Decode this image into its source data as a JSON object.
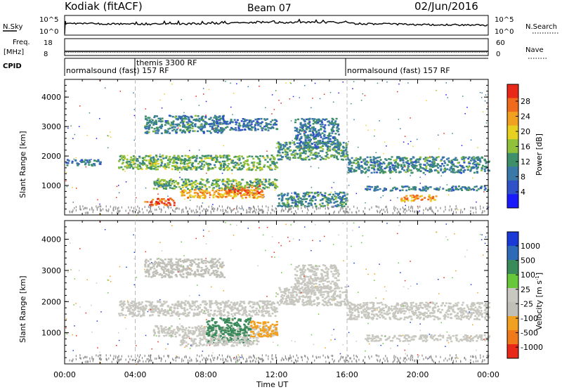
{
  "header": {
    "station": "Kodiak (fitACF)",
    "beam": "Beam 07",
    "date": "02/Jun/2016"
  },
  "strips": {
    "nsky_label": "N.Sky",
    "nsky_ticks": [
      "10^5",
      "10^0"
    ],
    "nsearch_label": "N.Search",
    "nsearch_ticks": [
      "10^5",
      "10^0"
    ],
    "freq_label_1": "Freq.",
    "freq_label_2": "[MHz]",
    "freq_ticks": [
      "18",
      "8"
    ],
    "nave_label": "Nave",
    "nave_ticks": [
      "60",
      "0"
    ],
    "cpid_label": "CPID",
    "cpid_entries": [
      {
        "text": "normalsound (fast) 157 RF",
        "start_hour": 0
      },
      {
        "text": "themis 3300 RF",
        "start_hour": 4
      },
      {
        "text": "normalsound (fast) 157 RF",
        "start_hour": 16
      }
    ]
  },
  "chart_data": [
    {
      "type": "heatmap",
      "panel": "power",
      "ylabel": "Slant Range [km]",
      "xlabel": "",
      "ylim": [
        0,
        4600
      ],
      "xlim_hours": [
        0,
        24
      ],
      "y_ticks": [
        1000,
        2000,
        3000,
        4000
      ],
      "colorbar": {
        "label": "Power [dB]",
        "ticks": [
          "4",
          "8",
          "12",
          "16",
          "20",
          "24",
          "28"
        ],
        "colors": [
          "#1a1aff",
          "#2f52c8",
          "#3a78a8",
          "#3f8f6a",
          "#8fc23a",
          "#e8d020",
          "#f2a020",
          "#ef6a1a",
          "#e82818"
        ]
      },
      "regions": [
        {
          "t0": 4.5,
          "t1": 6.2,
          "r0": 350,
          "r1": 600,
          "level": 28
        },
        {
          "t0": 6.5,
          "t1": 11.2,
          "r0": 600,
          "r1": 900,
          "level": 24
        },
        {
          "t0": 9.0,
          "t1": 11.0,
          "r0": 750,
          "r1": 1050,
          "level": 28
        },
        {
          "t0": 5.0,
          "t1": 12.0,
          "r0": 900,
          "r1": 1250,
          "level": 14
        },
        {
          "t0": 12.0,
          "t1": 16.0,
          "r0": 300,
          "r1": 800,
          "level": 10
        },
        {
          "t0": 3.0,
          "t1": 12.0,
          "r0": 1550,
          "r1": 2050,
          "level": 14
        },
        {
          "t0": 12.0,
          "t1": 16.0,
          "r0": 1900,
          "r1": 2500,
          "level": 12
        },
        {
          "t0": 16.0,
          "t1": 24.0,
          "r0": 1450,
          "r1": 2000,
          "level": 10
        },
        {
          "t0": 13.0,
          "t1": 15.5,
          "r0": 2300,
          "r1": 3300,
          "level": 9
        },
        {
          "t0": 4.5,
          "t1": 9.0,
          "r0": 2800,
          "r1": 3400,
          "level": 10
        },
        {
          "t0": 8.5,
          "t1": 12.0,
          "r0": 2900,
          "r1": 3300,
          "level": 8
        },
        {
          "t0": 17.0,
          "t1": 24.0,
          "r0": 850,
          "r1": 1000,
          "level": 9
        },
        {
          "t0": 19.0,
          "t1": 21.0,
          "r0": 500,
          "r1": 700,
          "level": 24
        },
        {
          "t0": 0.0,
          "t1": 2.0,
          "r0": 1700,
          "r1": 1900,
          "level": 8
        }
      ]
    },
    {
      "type": "heatmap",
      "panel": "velocity",
      "ylabel": "Slant Range [km]",
      "xlabel": "Time UT",
      "ylim": [
        0,
        4600
      ],
      "xlim_hours": [
        0,
        24
      ],
      "y_ticks": [
        1000,
        2000,
        3000,
        4000
      ],
      "x_tick_labels": [
        "00:00",
        "04:00",
        "08:00",
        "12:00",
        "16:00",
        "20:00",
        "00:00"
      ],
      "colorbar": {
        "label": "Velocity [m s^-1]",
        "ticks": [
          "1000",
          "500",
          "100",
          "25",
          "-25",
          "-100",
          "-500",
          "-1000"
        ],
        "colors": [
          "#1a3ad8",
          "#2f6ab8",
          "#3a8a5a",
          "#68c83a",
          "#c8c8c0",
          "#c0c0b8",
          "#f2a020",
          "#f07a1a",
          "#e82818"
        ]
      },
      "regions": [
        {
          "t0": 5.0,
          "t1": 12.0,
          "r0": 900,
          "r1": 1250,
          "level": 0
        },
        {
          "t0": 3.0,
          "t1": 12.0,
          "r0": 1550,
          "r1": 2050,
          "level": 0
        },
        {
          "t0": 12.0,
          "t1": 16.0,
          "r0": 1900,
          "r1": 2500,
          "level": 0
        },
        {
          "t0": 16.0,
          "t1": 24.0,
          "r0": 1450,
          "r1": 2000,
          "level": 0
        },
        {
          "t0": 13.0,
          "t1": 15.5,
          "r0": 2300,
          "r1": 3200,
          "level": 0
        },
        {
          "t0": 4.5,
          "t1": 9.0,
          "r0": 2800,
          "r1": 3400,
          "level": -40
        },
        {
          "t0": 8.0,
          "t1": 10.5,
          "r0": 700,
          "r1": 1500,
          "level": 150
        },
        {
          "t0": 10.5,
          "t1": 12.0,
          "r0": 900,
          "r1": 1400,
          "level": -200
        },
        {
          "t0": 6.5,
          "t1": 11.0,
          "r0": 600,
          "r1": 900,
          "level": 10
        },
        {
          "t0": 17.0,
          "t1": 24.0,
          "r0": 750,
          "r1": 950,
          "level": 0
        }
      ]
    }
  ]
}
